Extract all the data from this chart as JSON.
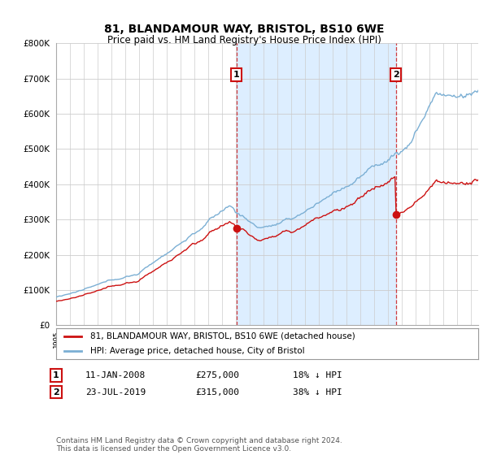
{
  "title": "81, BLANDAMOUR WAY, BRISTOL, BS10 6WE",
  "subtitle": "Price paid vs. HM Land Registry's House Price Index (HPI)",
  "ylim": [
    0,
    800000
  ],
  "yticks": [
    0,
    100000,
    200000,
    300000,
    400000,
    500000,
    600000,
    700000,
    800000
  ],
  "hpi_color": "#7bafd4",
  "price_color": "#cc1111",
  "shade_color": "#ddeeff",
  "marker1_year": 2008.03,
  "marker2_year": 2019.55,
  "marker1_price": 275000,
  "marker2_price": 315000,
  "legend_entries": [
    "81, BLANDAMOUR WAY, BRISTOL, BS10 6WE (detached house)",
    "HPI: Average price, detached house, City of Bristol"
  ],
  "date1_str": "11-JAN-2008",
  "date2_str": "23-JUL-2019",
  "price1_str": "£275,000",
  "price2_str": "£315,000",
  "pct1_str": "18% ↓ HPI",
  "pct2_str": "38% ↓ HPI",
  "copyright": "Contains HM Land Registry data © Crown copyright and database right 2024.\nThis data is licensed under the Open Government Licence v3.0.",
  "background_color": "#ffffff",
  "grid_color": "#cccccc"
}
